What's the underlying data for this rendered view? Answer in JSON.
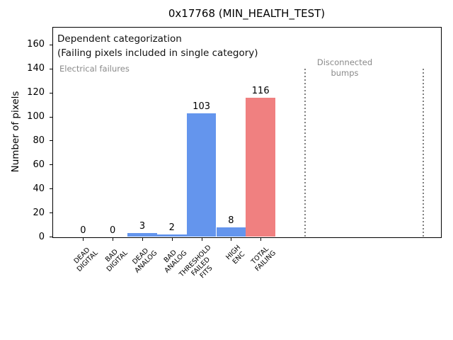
{
  "window": {
    "title": "0x17768 (MIN_HEALTH_TEST)"
  },
  "chart_data": {
    "type": "bar",
    "title": "0x17768 (MIN_HEALTH_TEST)",
    "xlabel": "",
    "ylabel": "Number of pixels",
    "categories": [
      "DEAD\nDIGITAL",
      "BAD\nDIGITAL",
      "DEAD\nANALOG",
      "BAD\nANALOG",
      "THRESHOLD\nFAILED\nFITS",
      "HIGH\nENC",
      "TOTAL\nFAILING"
    ],
    "values": [
      0,
      0,
      3,
      2,
      103,
      8,
      116
    ],
    "bar_colors": [
      "#6495ed",
      "#6495ed",
      "#6495ed",
      "#6495ed",
      "#6495ed",
      "#6495ed",
      "#f08080"
    ],
    "value_labels": [
      "0",
      "0",
      "3",
      "2",
      "103",
      "8",
      "116"
    ],
    "ylim": [
      0,
      175
    ],
    "yticks": [
      0,
      20,
      40,
      60,
      80,
      100,
      120,
      140,
      160
    ],
    "grid": false,
    "legend": null,
    "annotations": {
      "dependent_line1": "Dependent categorization",
      "dependent_line2": "(Failing pixels included in single category)",
      "electrical": "Electrical failures",
      "disconnected_line1": "Disconnected",
      "disconnected_line2": "bumps"
    },
    "vlines": {
      "x_units": [
        7.5,
        11.5
      ],
      "style": "dotted",
      "color": "#7f7f7f",
      "y_max_units": 140
    },
    "colors": {
      "bar_blue": "#6495ed",
      "bar_red": "#f08080",
      "gray_text": "#8a8a8a",
      "axis": "#000000",
      "background": "#ffffff"
    }
  }
}
